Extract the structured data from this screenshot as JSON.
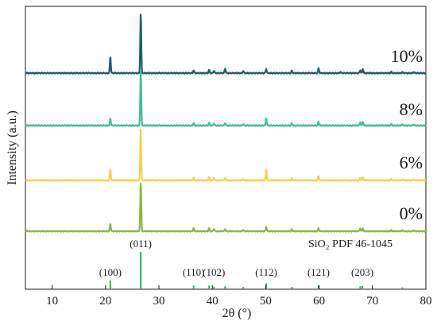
{
  "chart_data": {
    "type": "line",
    "xlabel": "2θ (°)",
    "ylabel": "Intensity (a.u.)",
    "xlim": [
      5,
      80
    ],
    "xticks": [
      "10",
      "20",
      "30",
      "40",
      "50",
      "60",
      "70",
      "80"
    ],
    "series": [
      {
        "name": "10%",
        "color": "#1e5e6e",
        "peaks": [
          [
            20.9,
            0.27
          ],
          [
            26.6,
            1.0
          ],
          [
            36.5,
            0.05
          ],
          [
            39.4,
            0.05
          ],
          [
            40.3,
            0.04
          ],
          [
            42.4,
            0.08
          ],
          [
            45.8,
            0.04
          ],
          [
            50.1,
            0.07
          ],
          [
            54.9,
            0.04
          ],
          [
            59.9,
            0.08
          ],
          [
            64.0,
            0.02
          ],
          [
            67.7,
            0.05
          ],
          [
            68.2,
            0.07
          ],
          [
            73.5,
            0.02
          ],
          [
            75.6,
            0.02
          ],
          [
            77.7,
            0.02
          ]
        ]
      },
      {
        "name": "8%",
        "color": "#3fbf95",
        "peaks": [
          [
            20.9,
            0.13
          ],
          [
            26.6,
            1.0
          ],
          [
            36.5,
            0.05
          ],
          [
            39.4,
            0.05
          ],
          [
            40.3,
            0.04
          ],
          [
            42.4,
            0.05
          ],
          [
            45.8,
            0.03
          ],
          [
            50.1,
            0.13
          ],
          [
            54.9,
            0.04
          ],
          [
            59.9,
            0.07
          ],
          [
            67.7,
            0.06
          ],
          [
            68.2,
            0.07
          ],
          [
            73.5,
            0.02
          ],
          [
            75.6,
            0.02
          ],
          [
            77.7,
            0.02
          ]
        ]
      },
      {
        "name": "6%",
        "color": "#f5d14a",
        "peaks": [
          [
            20.9,
            0.22
          ],
          [
            26.6,
            1.0
          ],
          [
            36.5,
            0.06
          ],
          [
            39.4,
            0.06
          ],
          [
            40.3,
            0.05
          ],
          [
            42.4,
            0.05
          ],
          [
            45.8,
            0.03
          ],
          [
            50.1,
            0.21
          ],
          [
            54.9,
            0.04
          ],
          [
            59.9,
            0.08
          ],
          [
            67.7,
            0.05
          ],
          [
            68.2,
            0.06
          ],
          [
            73.5,
            0.02
          ],
          [
            75.6,
            0.02
          ],
          [
            77.7,
            0.02
          ]
        ]
      },
      {
        "name": "0%",
        "color": "#8ab83b",
        "peaks": [
          [
            20.9,
            0.15
          ],
          [
            26.6,
            1.0
          ],
          [
            36.5,
            0.07
          ],
          [
            39.4,
            0.06
          ],
          [
            40.3,
            0.05
          ],
          [
            42.4,
            0.05
          ],
          [
            45.8,
            0.03
          ],
          [
            50.1,
            0.09
          ],
          [
            54.9,
            0.04
          ],
          [
            59.9,
            0.06
          ],
          [
            67.7,
            0.06
          ],
          [
            68.2,
            0.06
          ],
          [
            73.5,
            0.02
          ],
          [
            75.6,
            0.02
          ],
          [
            77.7,
            0.02
          ]
        ]
      }
    ],
    "reference": {
      "label": "SiO₂  PDF 46-1045",
      "color": "#2bb24c",
      "lines": [
        [
          20.9,
          0.22
        ],
        [
          26.6,
          1.0
        ],
        [
          36.5,
          0.08
        ],
        [
          39.4,
          0.08
        ],
        [
          40.3,
          0.05
        ],
        [
          42.4,
          0.06
        ],
        [
          45.8,
          0.04
        ],
        [
          50.1,
          0.14
        ],
        [
          54.9,
          0.04
        ],
        [
          59.9,
          0.09
        ],
        [
          67.7,
          0.06
        ],
        [
          68.1,
          0.07
        ],
        [
          75.6,
          0.03
        ]
      ],
      "hkl": [
        {
          "text": "(100)",
          "x": 20.9
        },
        {
          "text": "(011)",
          "x": 26.6
        },
        {
          "text": "(110)",
          "x": 36.5
        },
        {
          "text": "(102)",
          "x": 40.3
        },
        {
          "text": "(112)",
          "x": 50.1
        },
        {
          "text": "(121)",
          "x": 59.9
        },
        {
          "text": "(203)",
          "x": 68.1
        }
      ]
    }
  }
}
